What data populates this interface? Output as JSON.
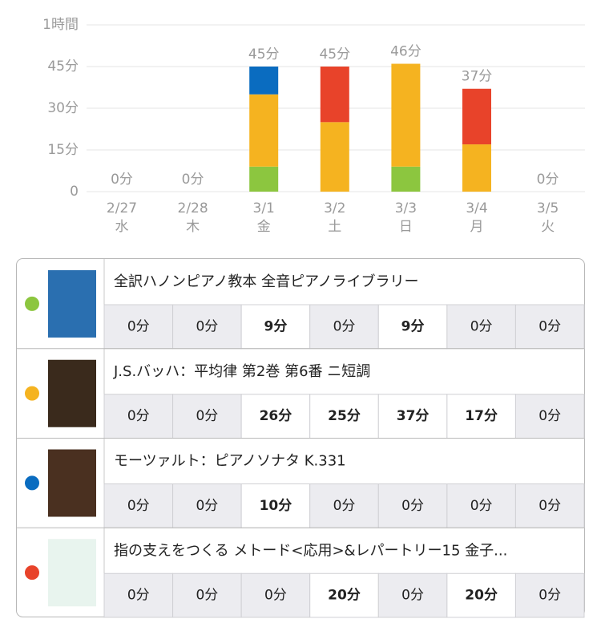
{
  "chart_data": {
    "type": "bar",
    "stacked": true,
    "categories": [
      "2/27",
      "2/28",
      "3/1",
      "3/2",
      "3/3",
      "3/4",
      "3/5"
    ],
    "weekdays": [
      "水",
      "木",
      "金",
      "土",
      "日",
      "月",
      "火"
    ],
    "ylim": [
      0,
      60
    ],
    "yticks": [
      0,
      {
        "value": 15,
        "label": "15分"
      },
      {
        "value": 30,
        "label": "30分"
      },
      {
        "value": 45,
        "label": "45分"
      },
      {
        "value": 60,
        "label": "1時間"
      }
    ],
    "grid": true,
    "series": [
      {
        "name": "全訳ハノンピアノ教本 全音ピアノライブラリー",
        "color": "#8cc63f",
        "values": [
          0,
          0,
          9,
          0,
          9,
          0,
          0
        ]
      },
      {
        "name": "J.S.バッハ：平均律 第2巻 第6番 ニ短調",
        "color": "#f5b320",
        "values": [
          0,
          0,
          26,
          25,
          37,
          17,
          0
        ]
      },
      {
        "name": "モーツァルト：ピアノソナタ K.331",
        "color": "#0a6cc0",
        "values": [
          0,
          0,
          10,
          0,
          0,
          0,
          0
        ]
      },
      {
        "name": "指の支えをつくる メトード<応用>&レパートリー15 金子...",
        "color": "#e8432a",
        "values": [
          0,
          0,
          0,
          20,
          0,
          20,
          0
        ]
      }
    ],
    "totals": {
      "values": [
        0,
        0,
        45,
        45,
        46,
        37,
        0
      ],
      "value_labels": [
        "0分",
        "0分",
        "45分",
        "45分",
        "46分",
        "37分",
        "0分"
      ]
    }
  },
  "table": {
    "rows": [
      {
        "cells": [
          "0分",
          "0分",
          "9分",
          "0分",
          "9分",
          "0分",
          "0分"
        ]
      },
      {
        "cells": [
          "0分",
          "0分",
          "26分",
          "25分",
          "37分",
          "17分",
          "0分"
        ]
      },
      {
        "cells": [
          "0分",
          "0分",
          "10分",
          "0分",
          "0分",
          "0分",
          "0分"
        ]
      },
      {
        "cells": [
          "0分",
          "0分",
          "0分",
          "20分",
          "0分",
          "20分",
          "0分"
        ]
      }
    ]
  }
}
